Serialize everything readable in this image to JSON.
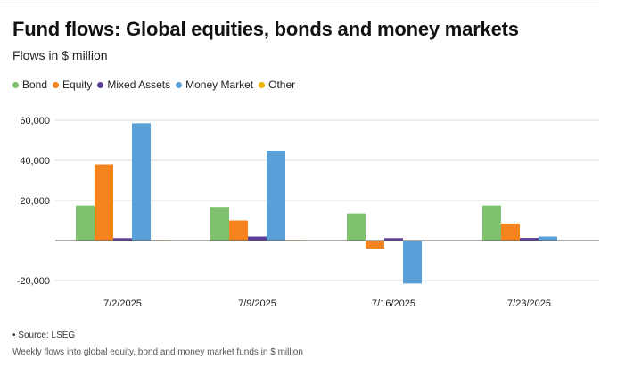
{
  "chart_data": {
    "type": "bar",
    "title": "Fund flows: Global equities, bonds and money markets",
    "subtitle": "Flows in $ million",
    "categories": [
      "7/2/2025",
      "7/9/2025",
      "7/16/2025",
      "7/23/2025"
    ],
    "series": [
      {
        "name": "Bond",
        "color": "#7fc16d",
        "values": [
          17500,
          16800,
          13500,
          17500
        ]
      },
      {
        "name": "Equity",
        "color": "#f5841f",
        "values": [
          38000,
          10000,
          -4000,
          8500
        ]
      },
      {
        "name": "Mixed Assets",
        "color": "#5b3e96",
        "values": [
          1200,
          2000,
          1200,
          1300
        ]
      },
      {
        "name": "Money Market",
        "color": "#5aa0d8",
        "values": [
          58500,
          44800,
          -21500,
          2000
        ]
      },
      {
        "name": "Other",
        "color": "#f2b400",
        "values": [
          300,
          300,
          0,
          0
        ]
      }
    ],
    "yticks": [
      60000,
      40000,
      20000,
      -20000
    ],
    "ytick_labels": [
      "60,000",
      "40,000",
      "20,000",
      "-20,000"
    ],
    "ylim": [
      -20000,
      60000
    ],
    "grid": true,
    "legend_position": "top-left",
    "source": "• Source: LSEG",
    "footnote": "Weekly flows into global equity, bond and money market funds in $ million"
  }
}
